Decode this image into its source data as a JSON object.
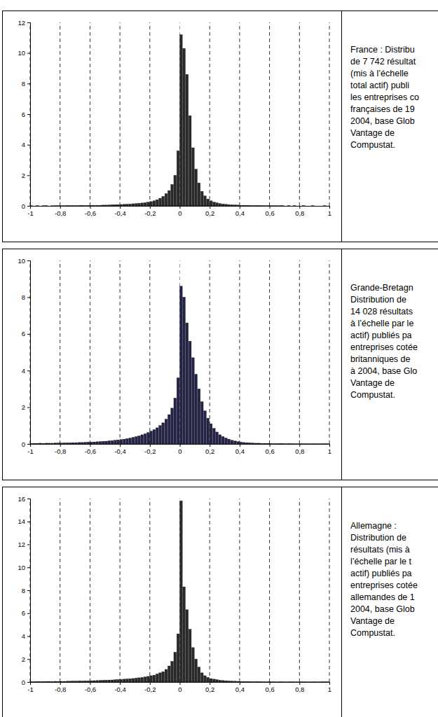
{
  "chart_data": [
    {
      "type": "histogram",
      "caption": [
        "France : Distribu",
        "de 7 742 résultat",
        "(mis à l’échelle",
        "total actif) publi",
        "les entreprises co",
        "françaises de 19",
        "2004, base Glob",
        "Vantage de",
        "Compustat."
      ],
      "bins": [
        -1,
        -0.98,
        -0.96,
        -0.94,
        -0.92,
        -0.9,
        -0.88,
        -0.86,
        -0.84,
        -0.82,
        -0.8,
        -0.78,
        -0.76,
        -0.74,
        -0.72,
        -0.7,
        -0.68,
        -0.66,
        -0.64,
        -0.62,
        -0.6,
        -0.58,
        -0.56,
        -0.54,
        -0.52,
        -0.5,
        -0.48,
        -0.46,
        -0.44,
        -0.42,
        -0.4,
        -0.38,
        -0.36,
        -0.34,
        -0.32,
        -0.3,
        -0.28,
        -0.26,
        -0.24,
        -0.22,
        -0.2,
        -0.18,
        -0.16,
        -0.14,
        -0.12,
        -0.1,
        -0.08,
        -0.06,
        -0.04,
        -0.02,
        0,
        0.02,
        0.04,
        0.06,
        0.08,
        0.1,
        0.12,
        0.14,
        0.16,
        0.18,
        0.2,
        0.22,
        0.24,
        0.26,
        0.28,
        0.3,
        0.32,
        0.34,
        0.36,
        0.38,
        0.4,
        0.42,
        0.44,
        0.46,
        0.48,
        0.5,
        0.52,
        0.54,
        0.56,
        0.58,
        0.6,
        0.62,
        0.64,
        0.66,
        0.68,
        0.7,
        0.72,
        0.74,
        0.76,
        0.78,
        0.8,
        0.82,
        0.84,
        0.86,
        0.88,
        0.9,
        0.92,
        0.94,
        0.96,
        0.98,
        1
      ],
      "values": [
        0.01,
        0,
        0.01,
        0,
        0.01,
        0.01,
        0,
        0.01,
        0.01,
        0.01,
        0.01,
        0.01,
        0.02,
        0.01,
        0.02,
        0.02,
        0.02,
        0.03,
        0.02,
        0.03,
        0.03,
        0.03,
        0.04,
        0.04,
        0.05,
        0.05,
        0.06,
        0.07,
        0.08,
        0.08,
        0.09,
        0.1,
        0.11,
        0.12,
        0.14,
        0.15,
        0.17,
        0.19,
        0.21,
        0.24,
        0.28,
        0.33,
        0.4,
        0.5,
        0.62,
        0.8,
        1.0,
        1.4,
        2.0,
        3.6,
        11.2,
        10.3,
        8.6,
        5.9,
        3.8,
        2.4,
        1.5,
        0.95,
        0.65,
        0.45,
        0.33,
        0.25,
        0.2,
        0.15,
        0.12,
        0.1,
        0.08,
        0.07,
        0.06,
        0.05,
        0.04,
        0.04,
        0.03,
        0.03,
        0.02,
        0.02,
        0.02,
        0.02,
        0.01,
        0.01,
        0.01,
        0.01,
        0.01,
        0.01,
        0.01,
        0,
        0.01,
        0,
        0.01,
        0,
        0,
        0.01,
        0,
        0,
        0.01,
        0,
        0,
        0,
        0.01,
        0
      ],
      "color": "#2a2a2a",
      "xlim": [
        -1,
        1
      ],
      "ylim": [
        0,
        12
      ],
      "xticks": [
        -1,
        {
          "value": -0.8,
          "label": "-0,8"
        },
        {
          "value": -0.6,
          "label": "-0,6"
        },
        {
          "value": -0.4,
          "label": "-0,4"
        },
        {
          "value": -0.2,
          "label": "-0,2"
        },
        0,
        {
          "value": 0.2,
          "label": "0,2"
        },
        {
          "value": 0.4,
          "label": "0,4"
        },
        {
          "value": 0.6,
          "label": "0,6"
        },
        {
          "value": 0.8,
          "label": "0,8"
        },
        1
      ],
      "yticks": [
        0,
        2,
        4,
        6,
        8,
        10,
        12
      ],
      "grid": true
    },
    {
      "type": "histogram",
      "caption": [
        "Grande-Bretagn",
        "Distribution de",
        "14 028 résultats",
        "à l’échelle par le",
        "actif) publiés pa",
        "entreprises cotée",
        "britanniques de",
        "à 2004, base Glo",
        "Vantage de",
        "Compustat."
      ],
      "bins": [
        -1,
        -0.98,
        -0.96,
        -0.94,
        -0.92,
        -0.9,
        -0.88,
        -0.86,
        -0.84,
        -0.82,
        -0.8,
        -0.78,
        -0.76,
        -0.74,
        -0.72,
        -0.7,
        -0.68,
        -0.66,
        -0.64,
        -0.62,
        -0.6,
        -0.58,
        -0.56,
        -0.54,
        -0.52,
        -0.5,
        -0.48,
        -0.46,
        -0.44,
        -0.42,
        -0.4,
        -0.38,
        -0.36,
        -0.34,
        -0.32,
        -0.3,
        -0.28,
        -0.26,
        -0.24,
        -0.22,
        -0.2,
        -0.18,
        -0.16,
        -0.14,
        -0.12,
        -0.1,
        -0.08,
        -0.06,
        -0.04,
        -0.02,
        0,
        0.02,
        0.04,
        0.06,
        0.08,
        0.1,
        0.12,
        0.14,
        0.16,
        0.18,
        0.2,
        0.22,
        0.24,
        0.26,
        0.28,
        0.3,
        0.32,
        0.34,
        0.36,
        0.38,
        0.4,
        0.42,
        0.44,
        0.46,
        0.48,
        0.5,
        0.52,
        0.54,
        0.56,
        0.58,
        0.6,
        0.62,
        0.64,
        0.66,
        0.68,
        0.7,
        0.72,
        0.74,
        0.76,
        0.78,
        0.8,
        0.82,
        0.84,
        0.86,
        0.88,
        0.9,
        0.92,
        0.94,
        0.96,
        0.98,
        1
      ],
      "values": [
        0.03,
        0.03,
        0.03,
        0.04,
        0.03,
        0.04,
        0.04,
        0.04,
        0.05,
        0.05,
        0.05,
        0.06,
        0.06,
        0.06,
        0.07,
        0.07,
        0.08,
        0.08,
        0.09,
        0.1,
        0.1,
        0.11,
        0.12,
        0.13,
        0.14,
        0.15,
        0.17,
        0.18,
        0.2,
        0.22,
        0.24,
        0.26,
        0.29,
        0.32,
        0.36,
        0.4,
        0.44,
        0.5,
        0.55,
        0.62,
        0.7,
        0.78,
        0.88,
        1.0,
        1.15,
        1.35,
        1.6,
        1.95,
        2.5,
        3.6,
        8.6,
        8.0,
        6.6,
        5.6,
        4.7,
        3.8,
        3.0,
        2.3,
        1.8,
        1.4,
        1.1,
        0.85,
        0.65,
        0.5,
        0.4,
        0.32,
        0.26,
        0.2,
        0.16,
        0.13,
        0.1,
        0.08,
        0.07,
        0.06,
        0.05,
        0.04,
        0.04,
        0.03,
        0.03,
        0.03,
        0.02,
        0.02,
        0.02,
        0.02,
        0.02,
        0.01,
        0.02,
        0.01,
        0.01,
        0.01,
        0.01,
        0.01,
        0.01,
        0.01,
        0.01,
        0.01,
        0.01,
        0.01,
        0.01,
        0.01
      ],
      "color": "#24244a",
      "xlim": [
        -1,
        1
      ],
      "ylim": [
        0,
        10
      ],
      "xticks": [
        -1,
        {
          "value": -0.8,
          "label": "-0,8"
        },
        {
          "value": -0.6,
          "label": "-0,6"
        },
        {
          "value": -0.4,
          "label": "-0,4"
        },
        {
          "value": -0.2,
          "label": "-0,2"
        },
        0,
        {
          "value": 0.2,
          "label": "0,2"
        },
        {
          "value": 0.4,
          "label": "0,4"
        },
        {
          "value": 0.6,
          "label": "0,6"
        },
        {
          "value": 0.8,
          "label": "0,8"
        },
        1
      ],
      "yticks": [
        0,
        2,
        4,
        6,
        8,
        10
      ],
      "grid": true
    },
    {
      "type": "histogram",
      "caption": [
        "Allemagne :",
        "Distribution de",
        "résultats (mis à",
        "l’échelle par le t",
        "actif) publiés pa",
        "entreprises cotée",
        "allemandes de 1",
        "2004, base Glob",
        "Vantage de",
        "Compustat."
      ],
      "bins": [
        -1,
        -0.98,
        -0.96,
        -0.94,
        -0.92,
        -0.9,
        -0.88,
        -0.86,
        -0.84,
        -0.82,
        -0.8,
        -0.78,
        -0.76,
        -0.74,
        -0.72,
        -0.7,
        -0.68,
        -0.66,
        -0.64,
        -0.62,
        -0.6,
        -0.58,
        -0.56,
        -0.54,
        -0.52,
        -0.5,
        -0.48,
        -0.46,
        -0.44,
        -0.42,
        -0.4,
        -0.38,
        -0.36,
        -0.34,
        -0.32,
        -0.3,
        -0.28,
        -0.26,
        -0.24,
        -0.22,
        -0.2,
        -0.18,
        -0.16,
        -0.14,
        -0.12,
        -0.1,
        -0.08,
        -0.06,
        -0.04,
        -0.02,
        0,
        0.02,
        0.04,
        0.06,
        0.08,
        0.1,
        0.12,
        0.14,
        0.16,
        0.18,
        0.2,
        0.22,
        0.24,
        0.26,
        0.28,
        0.3,
        0.32,
        0.34,
        0.36,
        0.38,
        0.4,
        0.42,
        0.44,
        0.46,
        0.48,
        0.5,
        0.52,
        0.54,
        0.56,
        0.58,
        0.6,
        0.62,
        0.64,
        0.66,
        0.68,
        0.7,
        0.72,
        0.74,
        0.76,
        0.78,
        0.8,
        0.82,
        0.84,
        0.86,
        0.88,
        0.9,
        0.92,
        0.94,
        0.96,
        0.98,
        1
      ],
      "values": [
        0.04,
        0.03,
        0.04,
        0.04,
        0.05,
        0.04,
        0.05,
        0.05,
        0.06,
        0.05,
        0.06,
        0.06,
        0.07,
        0.07,
        0.08,
        0.08,
        0.09,
        0.09,
        0.1,
        0.1,
        0.11,
        0.12,
        0.13,
        0.14,
        0.15,
        0.16,
        0.17,
        0.18,
        0.2,
        0.21,
        0.23,
        0.25,
        0.27,
        0.29,
        0.31,
        0.34,
        0.37,
        0.4,
        0.44,
        0.49,
        0.55,
        0.6,
        0.7,
        0.8,
        0.9,
        1.1,
        1.4,
        1.8,
        2.6,
        4.2,
        15.8,
        8.3,
        6.3,
        4.6,
        3.0,
        2.0,
        1.3,
        0.8,
        0.55,
        0.4,
        0.3,
        0.25,
        0.2,
        0.16,
        0.13,
        0.11,
        0.09,
        0.08,
        0.07,
        0.06,
        0.05,
        0.05,
        0.04,
        0.04,
        0.03,
        0.03,
        0.03,
        0.02,
        0.02,
        0.02,
        0.02,
        0.02,
        0.01,
        0.02,
        0.01,
        0.01,
        0.01,
        0.01,
        0.01,
        0.01,
        0.01,
        0.01,
        0.01,
        0.01,
        0.01,
        0.01,
        0.01,
        0.01,
        0.01,
        0.01
      ],
      "color": "#2a2a2a",
      "xlim": [
        -1,
        1
      ],
      "ylim": [
        0,
        16
      ],
      "xticks": [
        -1,
        {
          "value": -0.8,
          "label": "-0,8"
        },
        {
          "value": -0.6,
          "label": "-0,6"
        },
        {
          "value": -0.4,
          "label": "-0,4"
        },
        {
          "value": -0.2,
          "label": "-0,2"
        },
        0,
        {
          "value": 0.2,
          "label": "0,2"
        },
        {
          "value": 0.4,
          "label": "0,4"
        },
        {
          "value": 0.6,
          "label": "0,6"
        },
        {
          "value": 0.8,
          "label": "0,8"
        },
        1
      ],
      "yticks": [
        0,
        2,
        4,
        6,
        8,
        10,
        12,
        14,
        16
      ],
      "grid": true
    }
  ]
}
